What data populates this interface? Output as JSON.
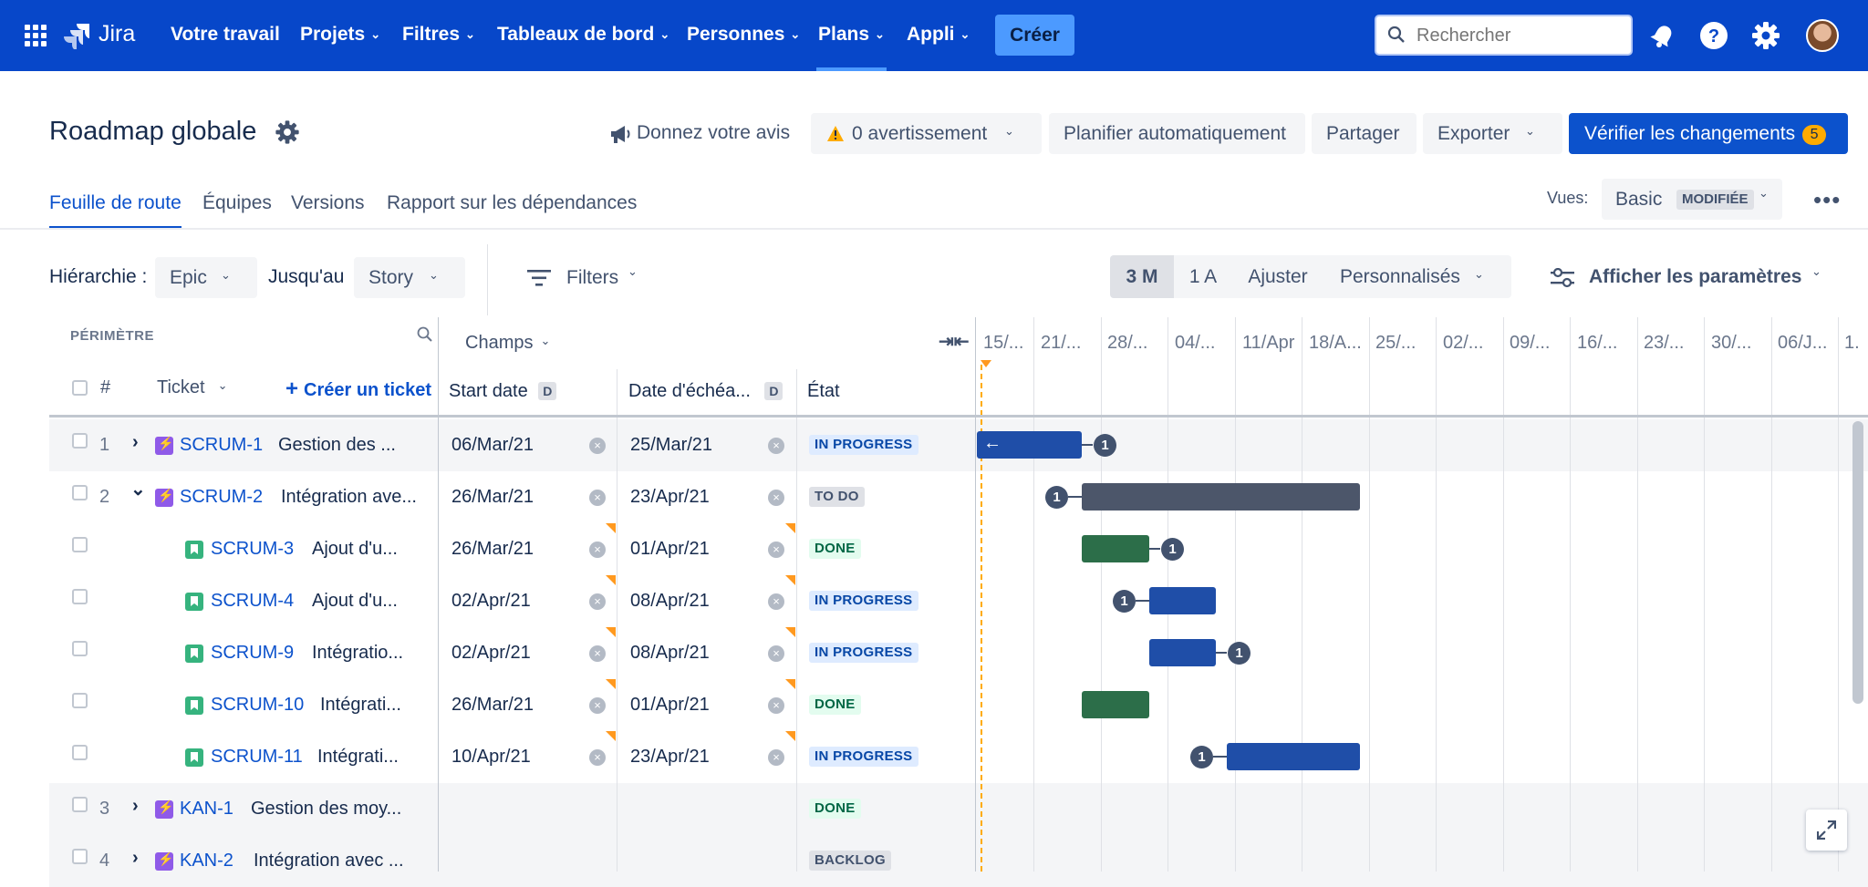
{
  "nav": {
    "logo": "Jira",
    "items": [
      {
        "label": "Votre travail",
        "chevron": false
      },
      {
        "label": "Projets",
        "chevron": true
      },
      {
        "label": "Filtres",
        "chevron": true
      },
      {
        "label": "Tableaux de bord",
        "chevron": true
      },
      {
        "label": "Personnes",
        "chevron": true
      },
      {
        "label": "Plans",
        "chevron": true,
        "active": true
      },
      {
        "label": "Appli",
        "chevron": true
      }
    ],
    "create_label": "Créer",
    "search_placeholder": "Rechercher"
  },
  "header": {
    "title": "Roadmap globale",
    "feedback_label": "Donnez votre avis",
    "warnings_label": "0 avertissement",
    "auto_schedule_label": "Planifier automatiquement",
    "share_label": "Partager",
    "export_label": "Exporter",
    "review_label": "Vérifier les changements",
    "review_count": "5"
  },
  "tabs": [
    "Feuille de route",
    "Équipes",
    "Versions",
    "Rapport sur les dépendances"
  ],
  "views": {
    "label": "Vues:",
    "value": "Basic",
    "badge": "MODIFIÉE"
  },
  "filters": {
    "hierarchy_label": "Hiérarchie :",
    "hierarchy_from": "Epic",
    "until_label": "Jusqu'au",
    "hierarchy_to": "Story",
    "filters_label": "Filters",
    "timescale": [
      "3 M",
      "1 A",
      "Ajuster",
      "Personnalisés"
    ],
    "timescale_selected": "3 M",
    "settings_label": "Afficher les paramètres"
  },
  "columns": {
    "scope_label": "PÉRIMÈTRE",
    "num_header": "#",
    "ticket_header": "Ticket",
    "create_ticket": "Créer un ticket",
    "fields_label": "Champs",
    "start_header": "Start date",
    "due_header": "Date d'échéa...",
    "date_badge": "D",
    "status_header": "État"
  },
  "timeline_dates": [
    "15/...",
    "21/...",
    "28/...",
    "04/...",
    "11/Apr",
    "18/A...",
    "25/...",
    "02/...",
    "09/...",
    "16/...",
    "23/...",
    "30/...",
    "06/J...",
    "1."
  ],
  "rows": [
    {
      "num": "1",
      "expand": "›",
      "type": "epic",
      "key": "SCRUM-1",
      "summary": "Gestion des ...",
      "start": "06/Mar/21",
      "due": "25/Mar/21",
      "status": "IN PROGRESS"
    },
    {
      "num": "2",
      "expand": "⌄",
      "type": "epic",
      "key": "SCRUM-2",
      "summary": "Intégration ave...",
      "start": "26/Mar/21",
      "due": "23/Apr/21",
      "status": "TO DO"
    },
    {
      "num": "",
      "type": "story",
      "key": "SCRUM-3",
      "summary": "Ajout d'u...",
      "start": "26/Mar/21",
      "due": "01/Apr/21",
      "status": "DONE"
    },
    {
      "num": "",
      "type": "story",
      "key": "SCRUM-4",
      "summary": "Ajout d'u...",
      "start": "02/Apr/21",
      "due": "08/Apr/21",
      "status": "IN PROGRESS"
    },
    {
      "num": "",
      "type": "story",
      "key": "SCRUM-9",
      "summary": "Intégratio...",
      "start": "02/Apr/21",
      "due": "08/Apr/21",
      "status": "IN PROGRESS"
    },
    {
      "num": "",
      "type": "story",
      "key": "SCRUM-10",
      "summary": "Intégrati...",
      "start": "26/Mar/21",
      "due": "01/Apr/21",
      "status": "DONE"
    },
    {
      "num": "",
      "type": "story",
      "key": "SCRUM-11",
      "summary": "Intégrati...",
      "start": "10/Apr/21",
      "due": "23/Apr/21",
      "status": "IN PROGRESS"
    },
    {
      "num": "3",
      "expand": "›",
      "type": "epic",
      "key": "KAN-1",
      "summary": "Gestion des moy...",
      "start": "",
      "due": "",
      "status": "DONE"
    },
    {
      "num": "4",
      "expand": "›",
      "type": "epic",
      "key": "KAN-2",
      "summary": "Intégration avec ...",
      "start": "",
      "due": "",
      "status": "BACKLOG"
    }
  ],
  "dependency_badge": "1",
  "colors": {
    "nav": "#0747c9",
    "primary": "#0c52cc",
    "bar_blue": "#1f4ea8",
    "bar_grey": "#4c566a",
    "bar_green": "#2c6e49",
    "warning": "#ffab00"
  }
}
